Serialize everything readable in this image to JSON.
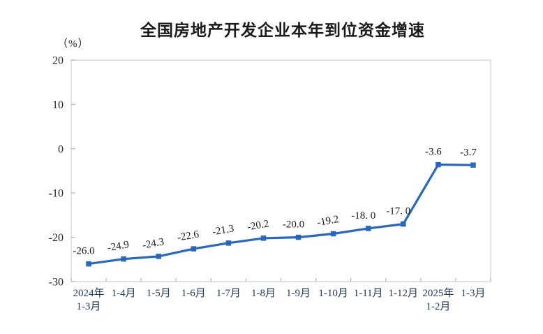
{
  "page": {
    "background_color": "#ffffff"
  },
  "chart_data": {
    "type": "line",
    "title": "全国房地产开发企业本年到位资金增速",
    "unit_label": "（%）",
    "categories": [
      "2024年\n1-3月",
      "1-4月",
      "1-5月",
      "1-6月",
      "1-7月",
      "1-8月",
      "1-9月",
      "1-10月",
      "1-11月",
      "1-12月",
      "2025年\n1-2月",
      "1-3月"
    ],
    "values": [
      -26.0,
      -24.9,
      -24.3,
      -22.6,
      -21.3,
      -20.2,
      -20.0,
      -19.2,
      -18.0,
      -17.0,
      -3.6,
      -3.7
    ],
    "point_labels": [
      "-26.0",
      "-24.9",
      "-24.3",
      "-22.6",
      "-21.3",
      "-20.2",
      "-20.0",
      "-19.2",
      "-18. 0",
      "-17. 0",
      "-3.6",
      "-3.7"
    ],
    "ylim": [
      -30,
      20
    ],
    "yticks": [
      20,
      10,
      0,
      -10,
      -20,
      -30
    ],
    "grid": false,
    "legend": "none",
    "line_color": "#2468c2",
    "marker_shape": "square",
    "label_tilt_indices": [
      1,
      2,
      3,
      4,
      5,
      7
    ],
    "axis_color": "#d2d2d2",
    "tick_color": "#b5b5b5",
    "x_label_color": "#203864",
    "y_label_color": "#262626",
    "point_label_color": "#1a1a1a"
  }
}
